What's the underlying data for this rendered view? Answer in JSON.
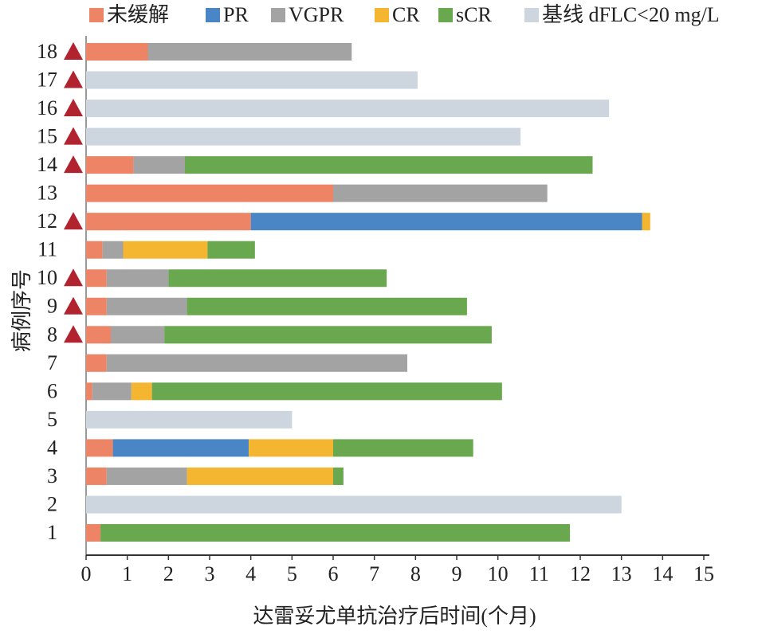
{
  "chart_data": {
    "type": "stacked-bar-horizontal",
    "xlabel": "达雷妥尤单抗治疗后时间(个月)",
    "ylabel": "病例序号",
    "categories": [
      "1",
      "2",
      "3",
      "4",
      "5",
      "6",
      "7",
      "8",
      "9",
      "10",
      "11",
      "12",
      "13",
      "14",
      "15",
      "16",
      "17",
      "18"
    ],
    "triangle_markers": [
      false,
      false,
      false,
      false,
      false,
      false,
      false,
      true,
      true,
      true,
      false,
      true,
      false,
      true,
      true,
      true,
      true,
      true
    ],
    "triangle_color": "#b0232f",
    "series": [
      {
        "name": "未缓解",
        "color": "#ee8466",
        "values": [
          0.35,
          null,
          0.5,
          0.65,
          null,
          0.15,
          0.5,
          0.6,
          0.5,
          0.5,
          0.4,
          4.0,
          6.0,
          1.15,
          null,
          null,
          null,
          1.5
        ]
      },
      {
        "name": "PR",
        "color": "#4a86c5",
        "values": [
          null,
          null,
          null,
          3.3,
          null,
          null,
          null,
          null,
          null,
          null,
          null,
          9.5,
          null,
          null,
          null,
          null,
          null,
          null
        ]
      },
      {
        "name": "VGPR",
        "color": "#a3a3a3",
        "values": [
          null,
          null,
          1.95,
          null,
          null,
          0.95,
          7.3,
          1.3,
          1.95,
          1.5,
          0.5,
          null,
          5.2,
          1.25,
          null,
          null,
          null,
          4.95
        ]
      },
      {
        "name": "CR",
        "color": "#f4b631",
        "values": [
          null,
          null,
          3.55,
          2.05,
          null,
          0.5,
          null,
          null,
          null,
          null,
          2.05,
          0.2,
          null,
          null,
          null,
          null,
          null,
          null
        ]
      },
      {
        "name": "sCR",
        "color": "#6aa84f",
        "values": [
          11.4,
          null,
          0.25,
          3.4,
          null,
          8.5,
          null,
          7.95,
          6.8,
          5.3,
          1.15,
          null,
          null,
          9.9,
          null,
          null,
          null,
          null
        ]
      },
      {
        "name": "基线 dFLC<20 mg/L",
        "color": "#cdd5df",
        "values": [
          null,
          13.0,
          null,
          null,
          5.0,
          null,
          null,
          null,
          null,
          null,
          null,
          null,
          null,
          null,
          10.55,
          12.7,
          8.05,
          null
        ]
      }
    ],
    "xlim": [
      0,
      15
    ],
    "xticks": [
      0,
      1,
      2,
      3,
      4,
      5,
      6,
      7,
      8,
      9,
      10,
      11,
      12,
      13,
      14,
      15
    ]
  }
}
